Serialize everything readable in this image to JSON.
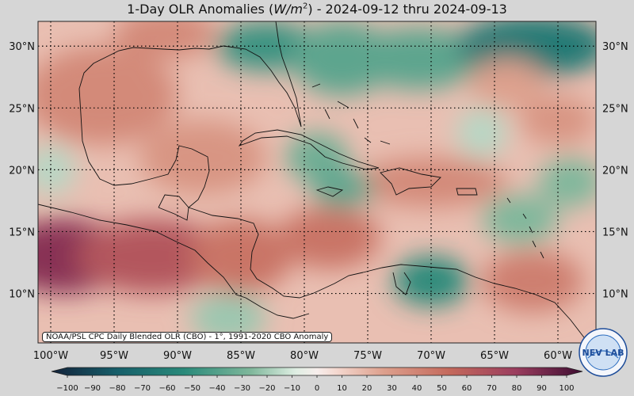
{
  "title": {
    "prefix": "1-Day OLR Anomalies (",
    "unit_main": "W/m",
    "unit_exp": "2",
    "suffix": ") - 2024-09-12 thru 2024-09-13"
  },
  "credit": "NOAA/PSL CPC Daily Blended OLR (CBO) - 1°, 1991-2020 CBO Anomaly",
  "logo_text": "NEV  LAB",
  "map": {
    "lon_range": [
      -101,
      -57
    ],
    "lat_range": [
      6,
      32
    ],
    "lon_ticks": [
      {
        "v": -100,
        "label": "100°W"
      },
      {
        "v": -95,
        "label": "95°W"
      },
      {
        "v": -90,
        "label": "90°W"
      },
      {
        "v": -85,
        "label": "85°W"
      },
      {
        "v": -80,
        "label": "80°W"
      },
      {
        "v": -75,
        "label": "75°W"
      },
      {
        "v": -70,
        "label": "70°W"
      },
      {
        "v": -65,
        "label": "65°W"
      },
      {
        "v": -60,
        "label": "60°W"
      }
    ],
    "lat_ticks": [
      {
        "v": 10,
        "label": "10°N"
      },
      {
        "v": 15,
        "label": "15°N"
      },
      {
        "v": 20,
        "label": "20°N"
      },
      {
        "v": 25,
        "label": "25°N"
      },
      {
        "v": 30,
        "label": "30°N"
      }
    ]
  },
  "colorbar": {
    "min": -100,
    "max": 100,
    "ticks": [
      -100,
      -90,
      -80,
      -70,
      -60,
      -50,
      -40,
      -30,
      -20,
      -10,
      0,
      10,
      20,
      30,
      40,
      50,
      60,
      70,
      80,
      90,
      100
    ],
    "colors": {
      "-100": "#13223a",
      "-75": "#175f6a",
      "-50": "#2a8a7a",
      "-25": "#7fb79b",
      "-8": "#dfeee3",
      "0": "#f7eeec",
      "8": "#f3d6cd",
      "25": "#dda08d",
      "50": "#c4695c",
      "75": "#9a3d5e",
      "100": "#3e0d32"
    }
  },
  "anomaly_regions": [
    {
      "lon": -99,
      "lat": 13,
      "rx": 5,
      "ry": 3,
      "value": 80
    },
    {
      "lon": -92,
      "lat": 13,
      "rx": 6,
      "ry": 3,
      "value": 60
    },
    {
      "lon": -85,
      "lat": 13,
      "rx": 4,
      "ry": 3,
      "value": 45
    },
    {
      "lon": -78,
      "lat": 14.5,
      "rx": 4,
      "ry": 2.5,
      "value": 45
    },
    {
      "lon": -70,
      "lat": 19,
      "rx": 6,
      "ry": 2,
      "value": 35
    },
    {
      "lon": -88,
      "lat": 21,
      "rx": 5,
      "ry": 3,
      "value": 30
    },
    {
      "lon": -96,
      "lat": 26,
      "rx": 6,
      "ry": 4,
      "value": 35
    },
    {
      "lon": -91,
      "lat": 31,
      "rx": 4,
      "ry": 2,
      "value": 35
    },
    {
      "lon": -83,
      "lat": 30,
      "rx": 4,
      "ry": 2,
      "value": -45
    },
    {
      "lon": -77,
      "lat": 29,
      "rx": 4,
      "ry": 3,
      "value": -35
    },
    {
      "lon": -71,
      "lat": 29,
      "rx": 5,
      "ry": 2.5,
      "value": -35
    },
    {
      "lon": -62,
      "lat": 30,
      "rx": 6,
      "ry": 2.5,
      "value": -60
    },
    {
      "lon": -79,
      "lat": 21,
      "rx": 2.5,
      "ry": 2,
      "value": -30
    },
    {
      "lon": -77,
      "lat": 18.5,
      "rx": 2.5,
      "ry": 1.5,
      "value": -35
    },
    {
      "lon": -70,
      "lat": 11,
      "rx": 3,
      "ry": 2,
      "value": -50
    },
    {
      "lon": -62,
      "lat": 11,
      "rx": 4,
      "ry": 2.5,
      "value": 40
    },
    {
      "lon": -63,
      "lat": 16,
      "rx": 3,
      "ry": 2,
      "value": -25
    },
    {
      "lon": -59,
      "lat": 19,
      "rx": 2.5,
      "ry": 2,
      "value": -25
    },
    {
      "lon": -60,
      "lat": 24,
      "rx": 3,
      "ry": 2,
      "value": 30
    },
    {
      "lon": -64,
      "lat": 27,
      "rx": 3,
      "ry": 2,
      "value": 25
    },
    {
      "lon": -86,
      "lat": 8,
      "rx": 3,
      "ry": 2,
      "value": -20
    },
    {
      "lon": -100,
      "lat": 20,
      "rx": 2,
      "ry": 2,
      "value": -15
    },
    {
      "lon": -66,
      "lat": 23,
      "rx": 2,
      "ry": 2,
      "value": -15
    }
  ]
}
